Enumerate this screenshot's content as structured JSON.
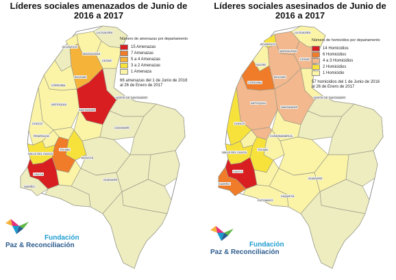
{
  "colors": {
    "threat_15": "#d81e21",
    "threat_7": "#f07b28",
    "threat_5_4": "#f6b33a",
    "threat_3_2": "#f7e23c",
    "threat_1": "#fbf4a6",
    "homicide_14": "#d81e21",
    "homicide_6": "#f07b28",
    "homicide_4_3": "#f3b88d",
    "homicide_2": "#f7e23c",
    "homicide_1": "#fbf4a6",
    "zero": "#eeedbf",
    "logo_blue": "#1b9ccf",
    "logo_navy": "#2b5a8c"
  },
  "left_map": {
    "title": "Líderes sociales amenazados de Junio de 2016 a 2017",
    "legend": {
      "title": "Número de amenazas por departamento",
      "items": [
        {
          "label": "15 Amenazas",
          "color": "#d81e21"
        },
        {
          "label": "7 Amenazas",
          "color": "#f07b28"
        },
        {
          "label": "5 a 4 Amenazas",
          "color": "#f6b33a"
        },
        {
          "label": "3 a 2 Amenazas",
          "color": "#f7e23c"
        },
        {
          "label": "1 Amenaza",
          "color": "#fbf4a6"
        }
      ],
      "note": "66 amenazas del 1 de Junio de 2016 al 26 de Enero de 2017"
    },
    "dept_labels": {
      "la_guajira": "LA GUAJIRA",
      "atlantico": "ATLÁNTICO",
      "magdalena": "MAGDALENA",
      "cesar": "CESAR",
      "bolivar": "BOLÍVAR",
      "cordoba": "CÓRDOBA",
      "antioquia": "ANTIOQUIA",
      "santander": "SANTANDER",
      "norte_santander": "NORTE DE SANTANDER",
      "choco": "CHOCÓ",
      "risaralda": "RISARALDA",
      "casanare": "CASANARE",
      "valle": "VALLE DEL CAUCA",
      "tolima": "TOLIMA",
      "bogota": "BOGOTÁ",
      "cauca": "CAUCA",
      "narino": "NARIÑO",
      "guaviare": "GUAVIARE"
    }
  },
  "right_map": {
    "title": "Líderes sociales asesinados de Junio de 2016 a 2017",
    "legend": {
      "title": "Número de homicidios por departamento",
      "items": [
        {
          "label": "14 Homicidios",
          "color": "#d81e21"
        },
        {
          "label": "6 Homicidios",
          "color": "#f07b28"
        },
        {
          "label": "4 a 3 Homicidios",
          "color": "#f3b88d"
        },
        {
          "label": "2 Homicidios",
          "color": "#f7e23c"
        },
        {
          "label": "1 Homicidio",
          "color": "#fbf4a6"
        }
      ],
      "note": "57 homicidios del 1 de Junio de 2016 al 26 de Enero de 2017"
    },
    "dept_labels": {
      "la_guajira": "LA GUAJIRA",
      "atlantico": "ATLÁNTICO",
      "magdalena": "MAGDALENA",
      "cesar": "CESAR",
      "sucre": "SUCRE",
      "bolivar": "BOLÍVAR",
      "cordoba": "CÓRDOBA",
      "antioquia": "ANTIOQUIA",
      "santander": "SANTANDER",
      "norte_santander": "NORTE DE SANTANDER",
      "choco": "CHOCÓ",
      "cundinamarca": "CUNDINAMARCA",
      "tolima": "TOLIMA",
      "valle": "VALLE DEL CAUCA",
      "cauca": "CAUCA",
      "narino": "NARIÑO",
      "putumayo": "PUTUMAYO",
      "guaviare": "GUAVIARE",
      "caqueta": "CAQUETÁ"
    }
  },
  "logo": {
    "line1": "Fundación",
    "line2": "Paz & Reconciliación"
  }
}
